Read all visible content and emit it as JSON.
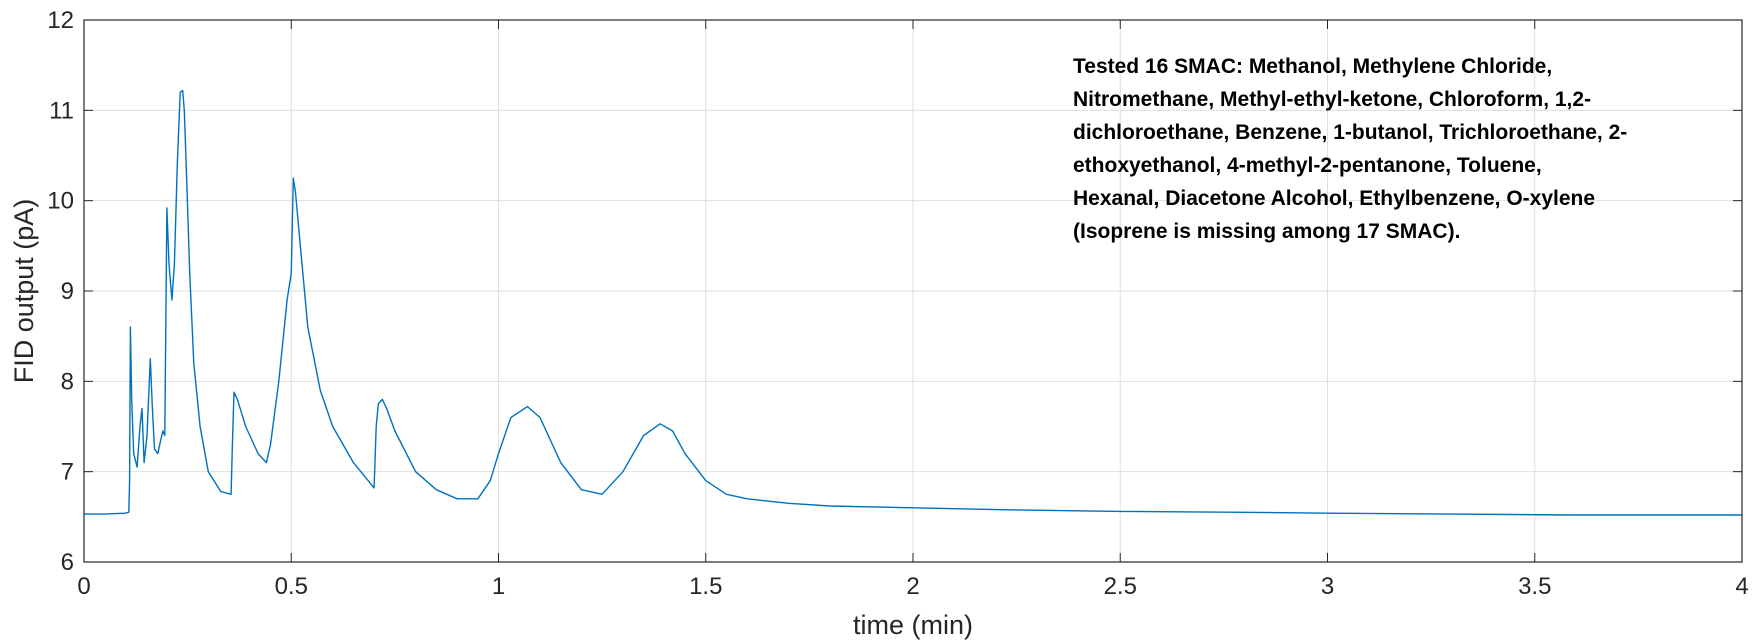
{
  "chart_data": {
    "type": "line",
    "title": "",
    "xlabel": "time (min)",
    "ylabel": "FID output (pA)",
    "xlim": [
      0,
      4
    ],
    "ylim": [
      6,
      12
    ],
    "xticks": [
      0,
      0.5,
      1,
      1.5,
      2,
      2.5,
      3,
      3.5,
      4
    ],
    "xtick_labels": [
      "0",
      "0.5",
      "1",
      "1.5",
      "2",
      "2.5",
      "3",
      "3.5",
      "4"
    ],
    "yticks": [
      6,
      7,
      8,
      9,
      10,
      11,
      12
    ],
    "ytick_labels": [
      "6",
      "7",
      "8",
      "9",
      "10",
      "11",
      "12"
    ],
    "grid": true,
    "legend": false,
    "line_color": "#0072BD",
    "series": [
      {
        "x": [
          0,
          0.05,
          0.1,
          0.108,
          0.11,
          0.112,
          0.115,
          0.12,
          0.128,
          0.135,
          0.14,
          0.145,
          0.152,
          0.16,
          0.165,
          0.17,
          0.178,
          0.185,
          0.19,
          0.195,
          0.197,
          0.2,
          0.205,
          0.212,
          0.218,
          0.225,
          0.232,
          0.238,
          0.242,
          0.248,
          0.255,
          0.265,
          0.28,
          0.3,
          0.33,
          0.355,
          0.358,
          0.362,
          0.37,
          0.39,
          0.42,
          0.44,
          0.45,
          0.47,
          0.49,
          0.5,
          0.505,
          0.51,
          0.52,
          0.54,
          0.57,
          0.6,
          0.65,
          0.7,
          0.705,
          0.71,
          0.72,
          0.73,
          0.75,
          0.8,
          0.85,
          0.9,
          0.95,
          0.98,
          1.0,
          1.03,
          1.07,
          1.1,
          1.15,
          1.2,
          1.25,
          1.3,
          1.35,
          1.39,
          1.42,
          1.45,
          1.5,
          1.55,
          1.6,
          1.7,
          1.8,
          2.0,
          2.2,
          2.5,
          2.8,
          3.0,
          3.3,
          3.6,
          4.0
        ],
        "y": [
          6.53,
          6.53,
          6.54,
          6.55,
          6.9,
          8.6,
          7.8,
          7.2,
          7.05,
          7.5,
          7.7,
          7.1,
          7.4,
          8.25,
          7.7,
          7.25,
          7.2,
          7.35,
          7.45,
          7.4,
          8.5,
          9.92,
          9.3,
          8.9,
          9.3,
          10.4,
          11.2,
          11.22,
          11.0,
          10.2,
          9.2,
          8.2,
          7.5,
          7.0,
          6.78,
          6.75,
          7.3,
          7.88,
          7.8,
          7.5,
          7.2,
          7.1,
          7.3,
          8.0,
          8.9,
          9.2,
          10.25,
          10.1,
          9.6,
          8.6,
          7.9,
          7.5,
          7.1,
          6.82,
          7.5,
          7.75,
          7.8,
          7.7,
          7.45,
          7.0,
          6.8,
          6.7,
          6.7,
          6.9,
          7.2,
          7.6,
          7.72,
          7.6,
          7.1,
          6.8,
          6.75,
          7.0,
          7.4,
          7.53,
          7.45,
          7.2,
          6.9,
          6.75,
          6.7,
          6.65,
          6.62,
          6.6,
          6.58,
          6.56,
          6.55,
          6.54,
          6.53,
          6.52,
          6.52
        ]
      }
    ],
    "annotation": "Tested 16 SMAC: Methanol, Methylene Chloride,\nNitromethane, Methyl-ethyl-ketone, Chloroform, 1,2-\ndichloroethane, Benzene, 1-butanol, Trichloroethane, 2-\nethoxyethanol, 4-methyl-2-pentanone, Toluene,\nHexanal, Diacetone Alcohol, Ethylbenzene, O-xylene\n(Isoprene is missing among 17 SMAC)."
  }
}
